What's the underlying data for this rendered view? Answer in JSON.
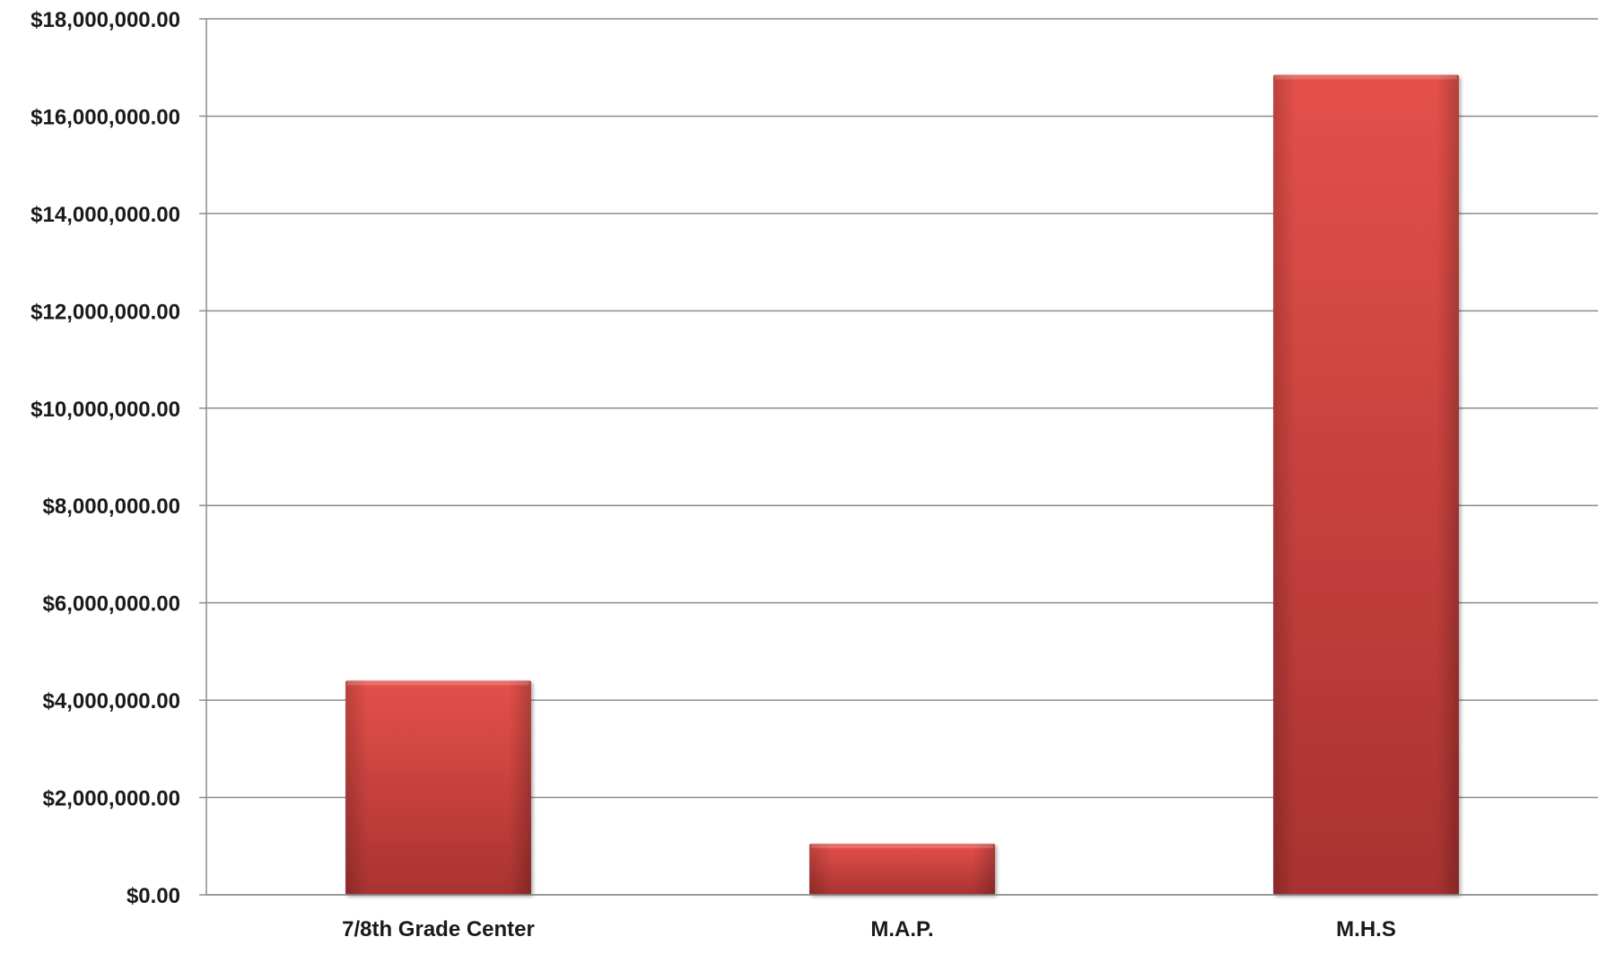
{
  "chart_data": {
    "type": "bar",
    "title": "",
    "xlabel": "",
    "ylabel": "",
    "categories": [
      "7/8th Grade Center",
      "M.A.P.",
      "M.H.S"
    ],
    "values": [
      4400000,
      1050000,
      16850000
    ],
    "ylim": [
      0,
      18000000
    ],
    "yticks": [
      0,
      2000000,
      4000000,
      6000000,
      8000000,
      10000000,
      12000000,
      14000000,
      16000000,
      18000000
    ],
    "ytick_labels": [
      "$0.00",
      "$2,000,000.00",
      "$4,000,000.00",
      "$6,000,000.00",
      "$8,000,000.00",
      "$10,000,000.00",
      "$12,000,000.00",
      "$14,000,000.00",
      "$16,000,000.00",
      "$18,000,000.00"
    ],
    "grid": true,
    "legend": "none",
    "bar_color": "#c8403b",
    "bar_color_light": "#e5504a",
    "bar_color_dark": "#a83230",
    "gridline_color": "#8c8c8c"
  }
}
